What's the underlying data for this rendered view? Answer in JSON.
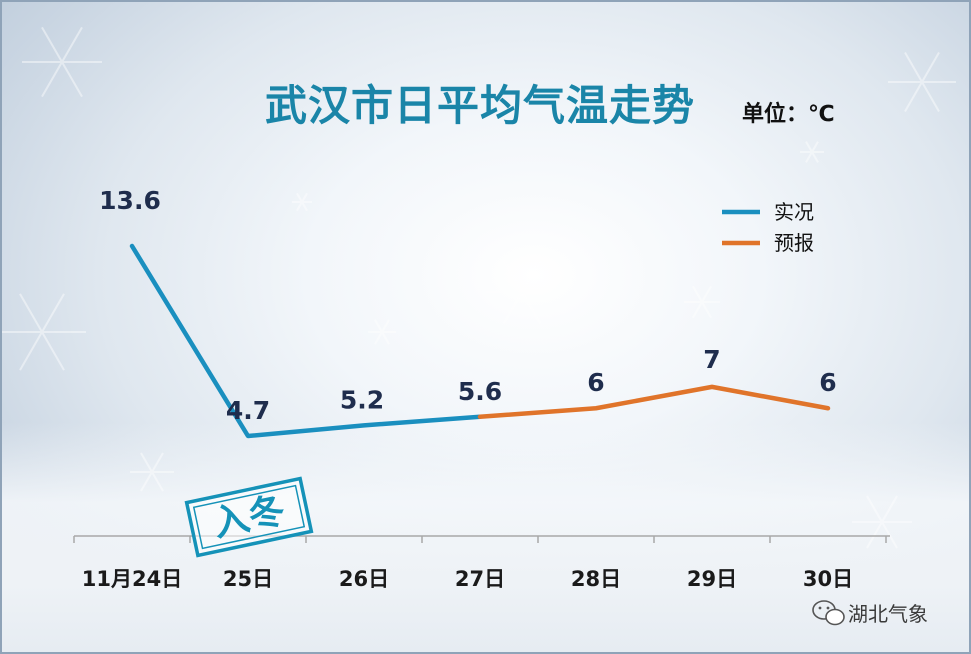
{
  "chart_data": {
    "type": "line",
    "title": "武汉市日平均气温走势",
    "unit": "单位：℃",
    "categories": [
      "11月24日",
      "25日",
      "26日",
      "27日",
      "28日",
      "29日",
      "30日"
    ],
    "series": [
      {
        "name": "实况",
        "color": "#1a8fbf",
        "values": [
          13.6,
          4.7,
          5.2,
          5.6,
          null,
          null,
          null
        ]
      },
      {
        "name": "预报",
        "color": "#e0742a",
        "values": [
          null,
          null,
          null,
          5.6,
          6,
          7,
          6
        ]
      }
    ],
    "data_labels": [
      "13.6",
      "4.7",
      "5.2",
      "5.6",
      "6",
      "7",
      "6"
    ],
    "legend_position": "top-right",
    "grid": false
  },
  "annotation": {
    "text": "入冬"
  },
  "watermark": {
    "text": "湖北气象"
  }
}
